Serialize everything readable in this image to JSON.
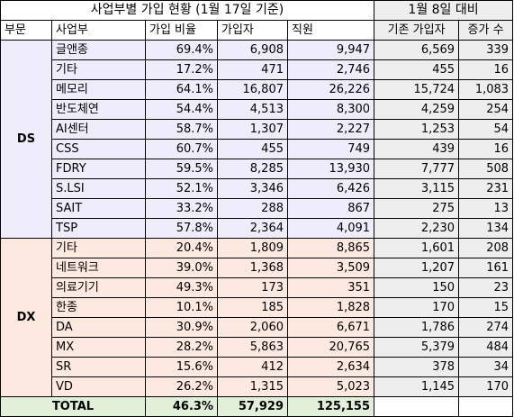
{
  "title": "사업부별 가입 현황 (1월 17일 기준)",
  "compare_title": "1월 8일 대비",
  "headers": {
    "division": "부문",
    "unit": "사업부",
    "rate": "가입 비율",
    "members": "가입자",
    "employees": "직원",
    "prev_members": "기존 가입자",
    "increase": "증가 수"
  },
  "ds": {
    "label": "DS",
    "rows": [
      {
        "unit": "글앤종",
        "rate": "69.4%",
        "members": "6,908",
        "employees": "9,947",
        "prev": "6,569",
        "inc": "339"
      },
      {
        "unit": "기타",
        "rate": "17.2%",
        "members": "471",
        "employees": "2,746",
        "prev": "455",
        "inc": "16"
      },
      {
        "unit": "메모리",
        "rate": "64.1%",
        "members": "16,807",
        "employees": "26,226",
        "prev": "15,724",
        "inc": "1,083"
      },
      {
        "unit": "반도체연",
        "rate": "54.4%",
        "members": "4,513",
        "employees": "8,300",
        "prev": "4,259",
        "inc": "254"
      },
      {
        "unit": "AI센터",
        "rate": "58.7%",
        "members": "1,307",
        "employees": "2,227",
        "prev": "1,253",
        "inc": "54"
      },
      {
        "unit": "CSS",
        "rate": "60.7%",
        "members": "455",
        "employees": "749",
        "prev": "439",
        "inc": "16"
      },
      {
        "unit": "FDRY",
        "rate": "59.5%",
        "members": "8,285",
        "employees": "13,930",
        "prev": "7,777",
        "inc": "508"
      },
      {
        "unit": "S.LSI",
        "rate": "52.1%",
        "members": "3,346",
        "employees": "6,426",
        "prev": "3,115",
        "inc": "231"
      },
      {
        "unit": "SAIT",
        "rate": "33.2%",
        "members": "288",
        "employees": "867",
        "prev": "275",
        "inc": "13"
      },
      {
        "unit": "TSP",
        "rate": "57.8%",
        "members": "2,364",
        "employees": "4,091",
        "prev": "2,230",
        "inc": "134"
      }
    ]
  },
  "dx": {
    "label": "DX",
    "rows": [
      {
        "unit": "기타",
        "rate": "20.4%",
        "members": "1,809",
        "employees": "8,865",
        "prev": "1,601",
        "inc": "208"
      },
      {
        "unit": "네트워크",
        "rate": "39.0%",
        "members": "1,368",
        "employees": "3,509",
        "prev": "1,207",
        "inc": "161"
      },
      {
        "unit": "의료기기",
        "rate": "49.3%",
        "members": "173",
        "employees": "351",
        "prev": "150",
        "inc": "23"
      },
      {
        "unit": "한종",
        "rate": "10.1%",
        "members": "185",
        "employees": "1,828",
        "prev": "170",
        "inc": "15"
      },
      {
        "unit": "DA",
        "rate": "30.9%",
        "members": "2,060",
        "employees": "6,671",
        "prev": "1,786",
        "inc": "274"
      },
      {
        "unit": "MX",
        "rate": "28.2%",
        "members": "5,863",
        "employees": "20,765",
        "prev": "5,379",
        "inc": "484"
      },
      {
        "unit": "SR",
        "rate": "15.6%",
        "members": "412",
        "employees": "2,634",
        "prev": "378",
        "inc": "34"
      },
      {
        "unit": "VD",
        "rate": "26.2%",
        "members": "1,315",
        "employees": "5,023",
        "prev": "1,145",
        "inc": "170"
      }
    ]
  },
  "total": {
    "label": "TOTAL",
    "rate": "46.3%",
    "members": "57,929",
    "employees": "125,155"
  }
}
